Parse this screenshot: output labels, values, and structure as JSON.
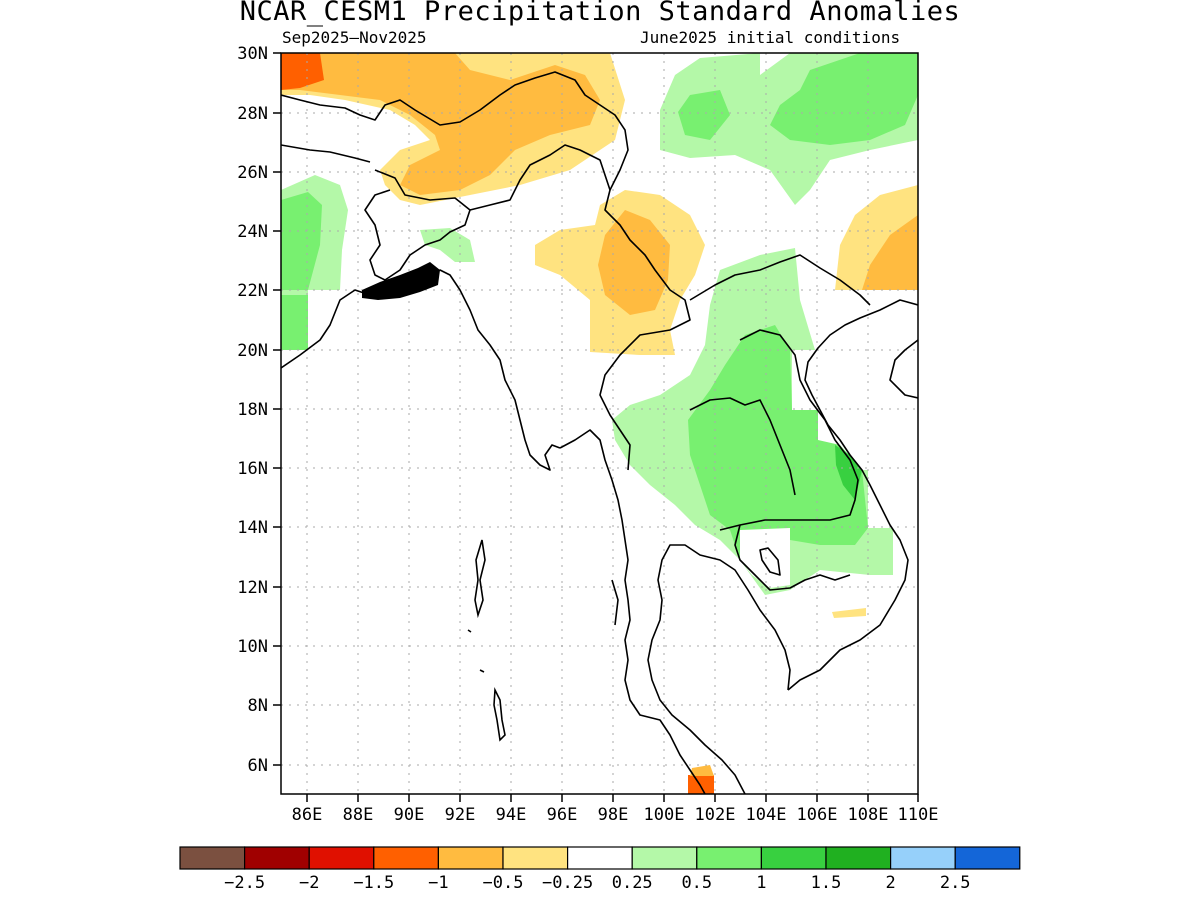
{
  "title": "NCAR_CESM1 Precipitation Standard Anomalies",
  "subtitle_left": "Sep2025—Nov2025",
  "subtitle_right": "June2025 initial conditions",
  "map": {
    "lon_range": [
      85,
      110
    ],
    "lat_range": [
      5,
      30
    ],
    "lon_ticks": [
      "86E",
      "88E",
      "90E",
      "92E",
      "94E",
      "96E",
      "98E",
      "100E",
      "102E",
      "104E",
      "106E",
      "108E",
      "110E"
    ],
    "lat_ticks": [
      "30N",
      "28N",
      "26N",
      "24N",
      "22N",
      "20N",
      "18N",
      "16N",
      "14N",
      "12N",
      "10N",
      "8N",
      "6N"
    ],
    "gridlines": "dotted"
  },
  "colorbar": {
    "colors": [
      "#7b5040",
      "#a00000",
      "#e01000",
      "#ff6000",
      "#ffbb40",
      "#ffe380",
      "#ffffff",
      "#b4f8a8",
      "#78f070",
      "#38d040",
      "#20b020",
      "#96d0fa",
      "#1466d8"
    ],
    "labels": [
      "−2.5",
      "−2",
      "−1.5",
      "−1",
      "−0.5",
      "−0.25",
      "0.25",
      "0.5",
      "1",
      "1.5",
      "2",
      "2.5"
    ]
  }
}
